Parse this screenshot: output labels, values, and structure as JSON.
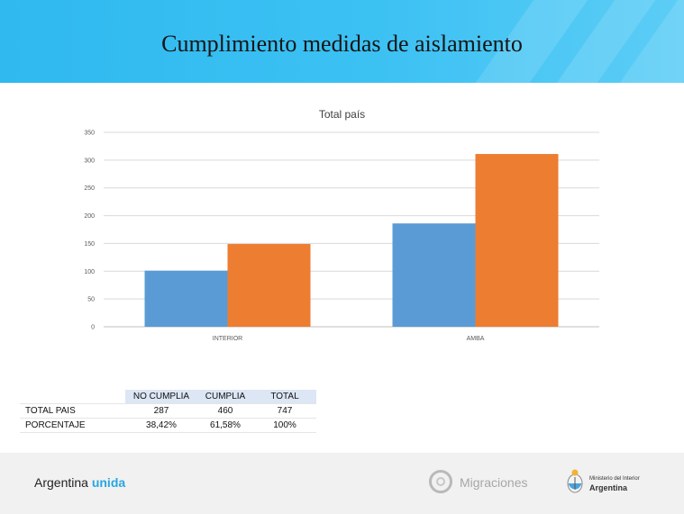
{
  "header": {
    "title": "Cumplimiento medidas de aislamiento"
  },
  "chart_data": {
    "type": "bar",
    "title": "Total país",
    "categories": [
      "INTERIOR",
      "AMBA"
    ],
    "series": [
      {
        "values": [
          101,
          186
        ],
        "color": "#5b9bd5"
      },
      {
        "values": [
          149,
          311
        ],
        "color": "#ed7d31"
      }
    ],
    "ylim": [
      0,
      350
    ],
    "yticks": [
      0,
      50,
      100,
      150,
      200,
      250,
      300,
      350
    ],
    "grid": true,
    "legend": "none"
  },
  "summary_table": {
    "headers": [
      "NO CUMPLIA",
      "CUMPLIA",
      "TOTAL"
    ],
    "rows": [
      {
        "label": "TOTAL PAIS",
        "values": [
          "287",
          "460",
          "747"
        ]
      },
      {
        "label": "PORCENTAJE",
        "values": [
          "38,42%",
          "61,58%",
          "100%"
        ]
      }
    ]
  },
  "footer": {
    "brand_main": "Argentina",
    "brand_accent": "unida",
    "migraciones": "Migraciones",
    "ministerio_line1": "Ministerio del Interior",
    "ministerio_line2": "Argentina"
  }
}
